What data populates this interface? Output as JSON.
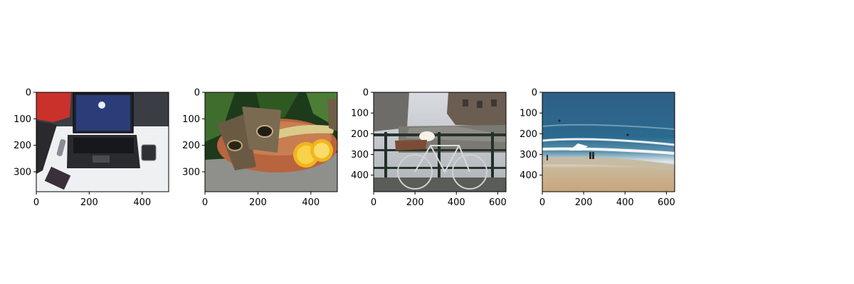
{
  "panels": [
    {
      "subject": "laptop-on-desk",
      "image_width": 500,
      "image_height": 375,
      "x_ticks": [
        0,
        200,
        400
      ],
      "y_ticks": [
        0,
        100,
        200,
        300
      ]
    },
    {
      "subject": "owl-butterflies-on-fruit-bowl",
      "image_width": 500,
      "image_height": 375,
      "x_ticks": [
        0,
        200,
        400
      ],
      "y_ticks": [
        0,
        100,
        200,
        300
      ]
    },
    {
      "subject": "bicycle-on-canal-bridge",
      "image_width": 640,
      "image_height": 480,
      "x_ticks": [
        0,
        200,
        400,
        600
      ],
      "y_ticks": [
        0,
        100,
        200,
        300,
        400
      ]
    },
    {
      "subject": "beach-with-waves",
      "image_width": 640,
      "image_height": 480,
      "x_ticks": [
        0,
        200,
        400,
        600
      ],
      "y_ticks": [
        0,
        100,
        200,
        300,
        400
      ]
    }
  ]
}
